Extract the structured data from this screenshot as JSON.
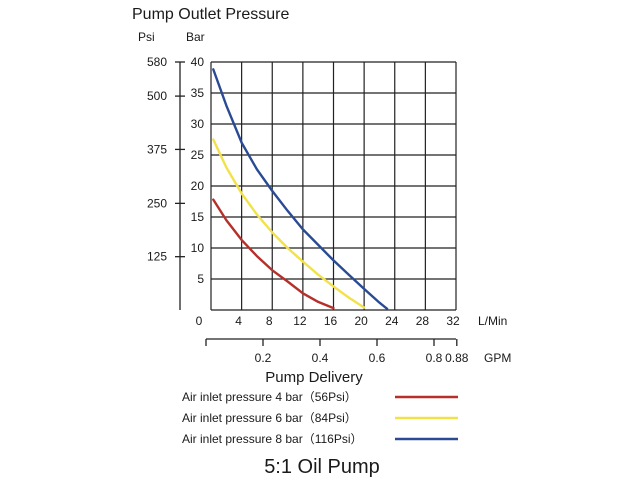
{
  "chart_data": {
    "type": "line",
    "title": "Pump Outlet Pressure",
    "left_axis_unit": "Psi",
    "right_axis_unit": "Bar",
    "xlabel": "Pump Delivery",
    "x_unit": "L/Min",
    "gpm_unit": "GPM",
    "caption": "5:1 Oil Pump",
    "xlim": [
      0,
      32
    ],
    "ylim": [
      0,
      40
    ],
    "grid": true,
    "x_ticks": [
      "0",
      "4",
      "8",
      "12",
      "16",
      "20",
      "24",
      "28",
      "32"
    ],
    "y_ticks": [
      "5",
      "10",
      "15",
      "20",
      "25",
      "30",
      "35",
      "40"
    ],
    "psi_ticks": [
      {
        "bar": 40,
        "label": "580"
      },
      {
        "bar": 34.5,
        "label": "500"
      },
      {
        "bar": 25.9,
        "label": "375"
      },
      {
        "bar": 17.2,
        "label": "250"
      },
      {
        "bar": 8.6,
        "label": "125"
      }
    ],
    "gpm_ticks": [
      "0.2",
      "0.4",
      "0.6",
      "0.8",
      "0.88"
    ],
    "series": [
      {
        "name": "Air inlet pressure 4 bar（56Psi）",
        "color": "#b5302a",
        "x": [
          0.3,
          2,
          4,
          6,
          8,
          10,
          12,
          14,
          16
        ],
        "y": [
          17.8,
          14.5,
          11.3,
          8.7,
          6.4,
          4.6,
          2.7,
          1.3,
          0.3
        ]
      },
      {
        "name": "Air inlet pressure 6 bar（84Psi）",
        "color": "#f2e24a",
        "x": [
          0.3,
          2,
          4,
          6,
          8,
          10,
          12,
          14,
          16,
          18,
          20
        ],
        "y": [
          27.5,
          23.0,
          18.8,
          15.4,
          12.5,
          10.0,
          7.8,
          5.7,
          3.8,
          2.0,
          0.4
        ]
      },
      {
        "name": "Air inlet pressure 8 bar（116Psi）",
        "color": "#2a4b94",
        "x": [
          0.3,
          2,
          4,
          6,
          8,
          10,
          12,
          14,
          16,
          18,
          20,
          22,
          23
        ],
        "y": [
          38.8,
          33.0,
          27.0,
          22.7,
          19.2,
          16.0,
          13.0,
          10.5,
          8.0,
          5.7,
          3.4,
          1.2,
          0.2
        ]
      }
    ]
  }
}
